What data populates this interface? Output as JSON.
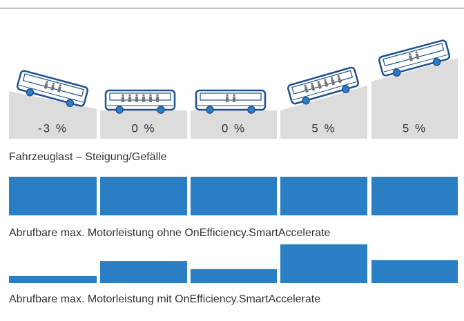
{
  "scenarios": [
    {
      "grade": "-3 %",
      "passengers": 3
    },
    {
      "grade": "0 %",
      "passengers": 6
    },
    {
      "grade": "0 %",
      "passengers": 2
    },
    {
      "grade": "5 %",
      "passengers": 6
    },
    {
      "grade": "5 %",
      "passengers": 2
    }
  ],
  "load_caption": "Fahrzeuglast – Steigung/Gefälle",
  "power_without": {
    "caption": "Abrufbare max. Motorleistung ohne OnEfficiency.SmartAccelerate",
    "values": [
      100,
      100,
      100,
      100,
      100
    ]
  },
  "power_with": {
    "caption": "Abrufbare max. Motorleistung mit OnEfficiency.SmartAccelerate",
    "values": [
      18,
      57,
      36,
      100,
      59
    ]
  }
}
